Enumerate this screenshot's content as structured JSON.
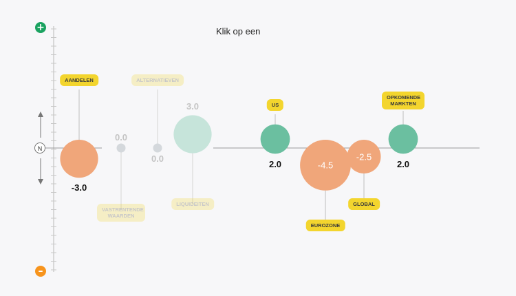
{
  "header": {
    "title": "Klik op een"
  },
  "scale": {
    "plus_label": "+",
    "minus_label": "–",
    "neutral_label": "N"
  },
  "colors": {
    "positive": "#6bbfa0",
    "negative": "#f0a67a",
    "neutral": "#d4d8dc",
    "tag": "#f3d52e",
    "plus": "#1aa260",
    "minus": "#f7941d"
  },
  "chart_data": {
    "type": "scatter",
    "items": [
      {
        "label": "AANDELEN",
        "value": -3.0,
        "value_text": "-3.0",
        "active": true,
        "tag_position": "top"
      },
      {
        "label": "VASTRENTENDE WAARDEN",
        "value": 0.0,
        "value_text": "0.0",
        "active": false,
        "tag_position": "bottom"
      },
      {
        "label": "ALTERNATIEVEN",
        "value": 0.0,
        "value_text": "0.0",
        "active": false,
        "tag_position": "top"
      },
      {
        "label": "LIQUIDEITEN",
        "value": 3.0,
        "value_text": "3.0",
        "active": false,
        "tag_position": "bottom"
      },
      {
        "label": "US",
        "value": 2.0,
        "value_text": "2.0",
        "active": true,
        "tag_position": "top"
      },
      {
        "label": "EUROZONE",
        "value": -4.5,
        "value_text": "-4.5",
        "active": true,
        "tag_position": "bottom"
      },
      {
        "label": "GLOBAL",
        "value": -2.5,
        "value_text": "-2.5",
        "active": true,
        "tag_position": "bottom"
      },
      {
        "label": "OPKOMENDE MARKTEN",
        "value": 2.0,
        "value_text": "2.0",
        "active": true,
        "tag_position": "top"
      }
    ]
  }
}
